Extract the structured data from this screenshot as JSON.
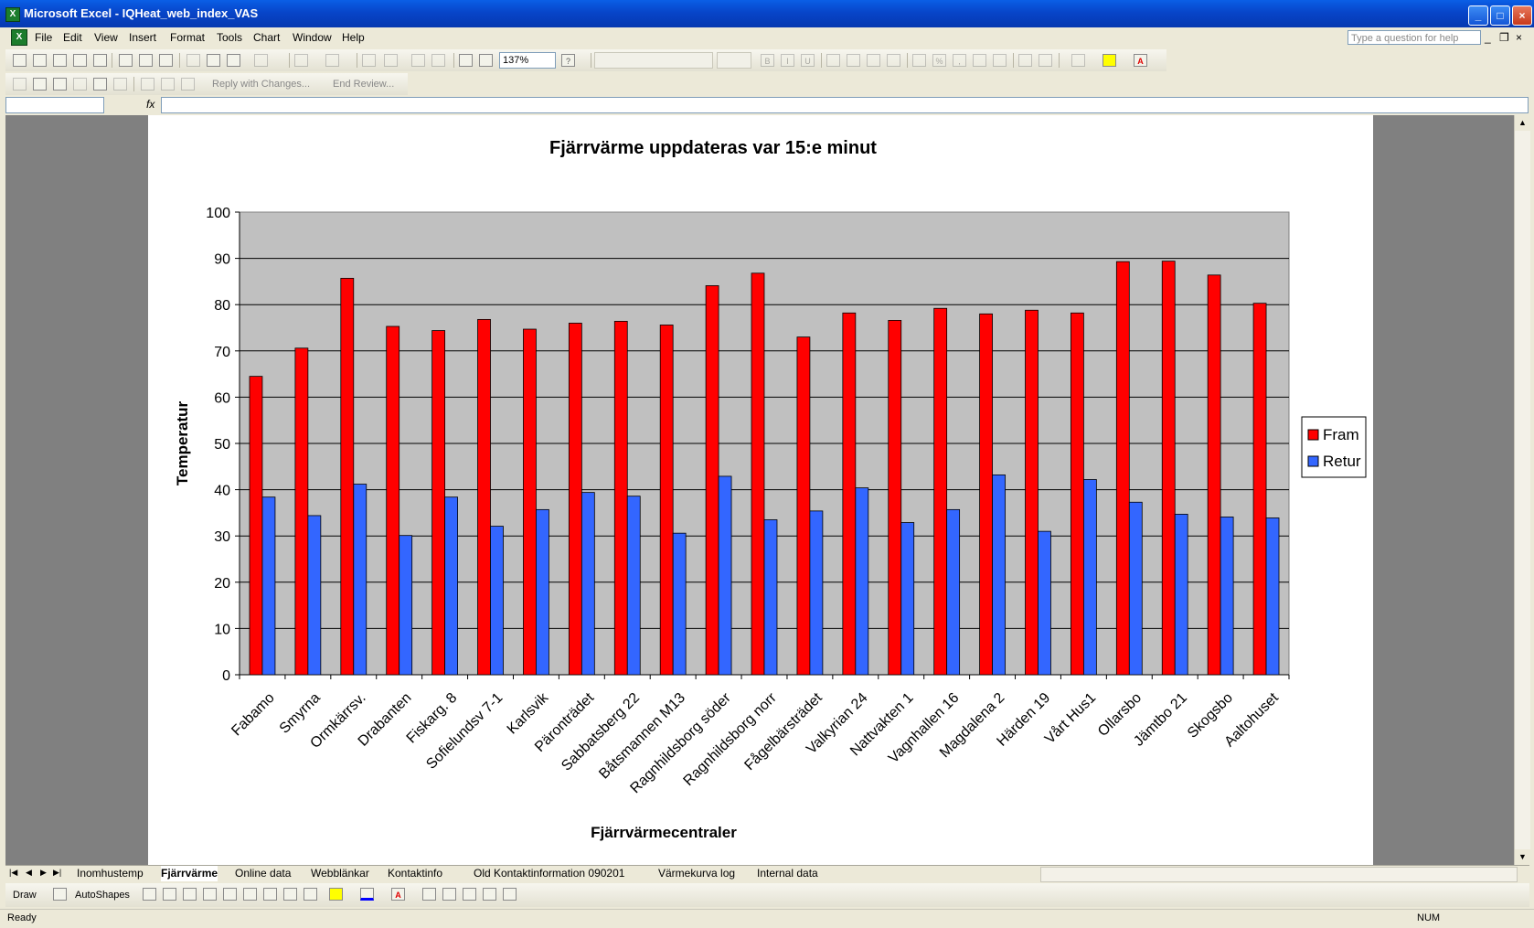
{
  "window": {
    "title": "Microsoft Excel - IQHeat_web_index_VAS"
  },
  "menu": [
    "File",
    "Edit",
    "View",
    "Insert",
    "Format",
    "Tools",
    "Chart",
    "Window",
    "Help"
  ],
  "help_placeholder": "Type a question for help",
  "toolbar": {
    "zoom": "137%",
    "reply_label": "Reply with Changes...",
    "end_review_label": "End Review..."
  },
  "formula": {
    "fx_label": "fx"
  },
  "sheet_tabs": [
    "Inomhustemp",
    "Fjärrvärme",
    "Online data",
    "Webblänkar",
    "Kontaktinfo",
    "Old Kontaktinformation 090201",
    "Värmekurva log",
    "Internal data"
  ],
  "active_tab": "Fjärrvärme",
  "drawbar": {
    "draw_label": "Draw",
    "autoshapes_label": "AutoShapes"
  },
  "status": {
    "left": "Ready",
    "right": "NUM"
  },
  "chart_data": {
    "type": "bar",
    "title": "Fjärrvärme uppdateras var 15:e minut",
    "xlabel": "Fjärrvärmecentraler",
    "ylabel": "Temperatur",
    "ylim": [
      0,
      100
    ],
    "yticks": [
      0,
      10,
      20,
      30,
      40,
      50,
      60,
      70,
      80,
      90,
      100
    ],
    "grid": true,
    "legend": "right",
    "categories": [
      "Fabamo",
      "Smyrna",
      "Ormkärrsv.",
      "Drabanten",
      "Fiskarg. 8",
      "Sofielundsv 7-1",
      "Karlsvik",
      "Päronträdet",
      "Sabbatsberg 22",
      "Båtsmannen M13",
      "Ragnhildsborg söder",
      "Ragnhildsborg norr",
      "Fågelbärsträdet",
      "Valkyrian 24",
      "Nattvakten 1",
      "Vagnhallen 16",
      "Magdalena 2",
      "Härden 19",
      "Vårt Hus1",
      "Ollarsbo",
      "Jämtbo 21",
      "Skogsbo",
      "Aaltohuset"
    ],
    "series": [
      {
        "name": "Fram",
        "color": "#ff0000",
        "values": [
          64.5,
          70.6,
          85.7,
          75.3,
          74.4,
          76.8,
          74.7,
          76.0,
          76.4,
          75.6,
          84.1,
          86.8,
          73.0,
          78.2,
          76.6,
          79.2,
          78.0,
          78.8,
          78.2,
          89.3,
          89.4,
          86.4,
          80.3
        ]
      },
      {
        "name": "Retur",
        "color": "#3366ff",
        "values": [
          38.4,
          34.4,
          41.2,
          30.1,
          38.4,
          32.1,
          35.7,
          39.4,
          38.6,
          30.6,
          42.9,
          33.5,
          35.4,
          40.4,
          32.9,
          35.7,
          43.2,
          31.0,
          42.2,
          37.3,
          34.7,
          34.1,
          33.9
        ]
      }
    ]
  }
}
